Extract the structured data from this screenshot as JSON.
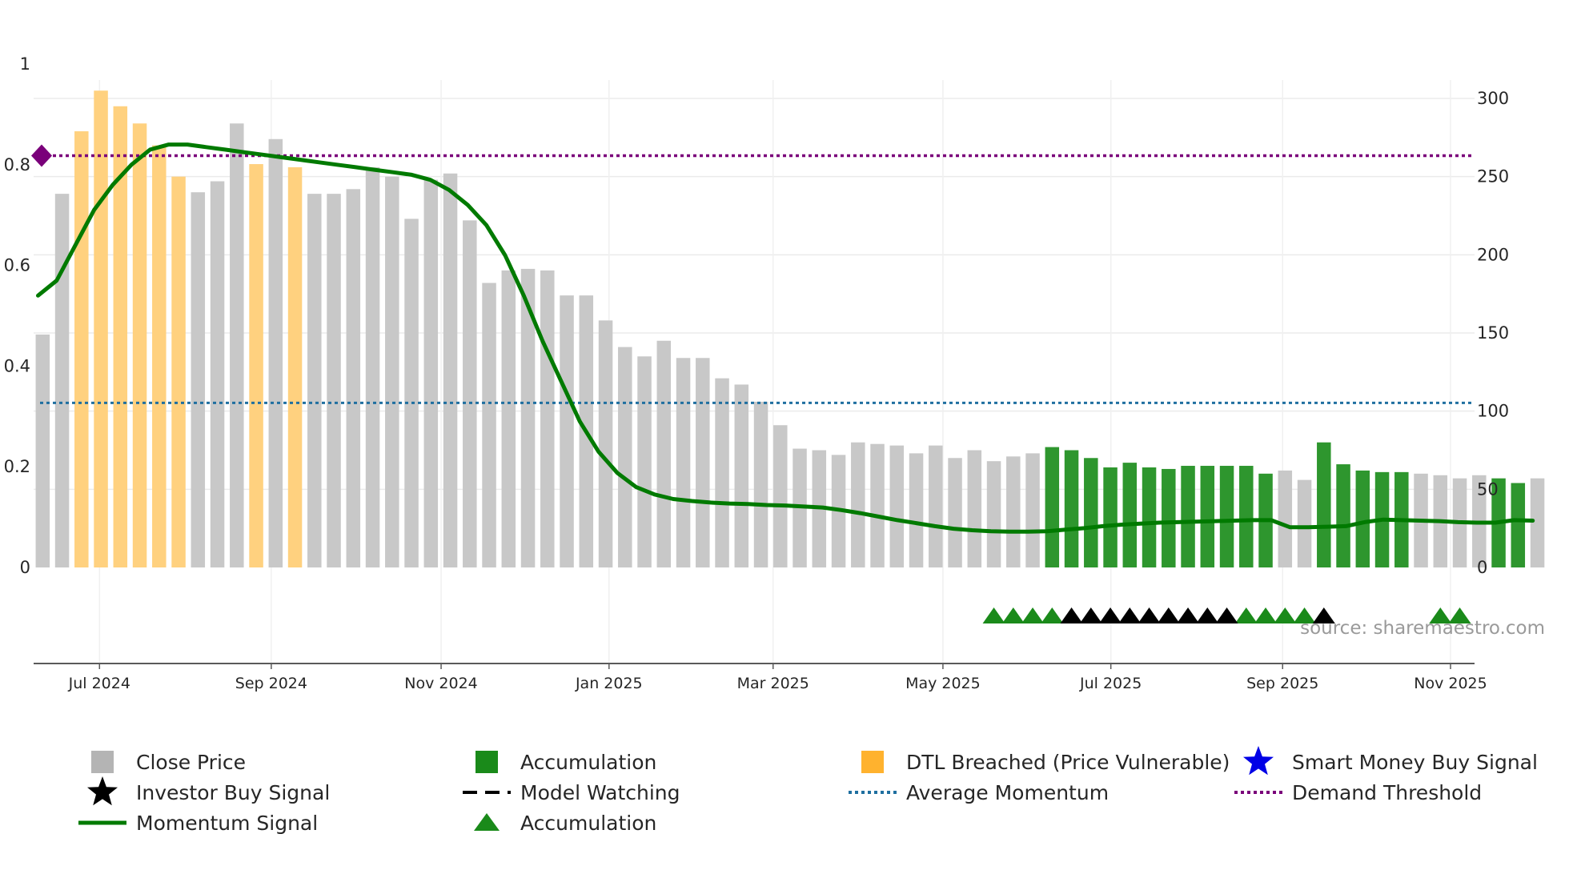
{
  "chart_data": {
    "type": "bar",
    "title": "",
    "source": "source: sharemaestro.com",
    "colors": {
      "close": "#c8c8c8",
      "accumulation": "#2e962e",
      "dtl": "#ffd17f",
      "momentum": "#007a00",
      "average": "#1f6fa0",
      "demand": "#7a007a",
      "marker_green": "#1a8a1a",
      "marker_black": "#000000"
    },
    "left_axis": {
      "ylim": [
        0,
        1
      ],
      "ticks": [
        "0",
        "0.2",
        "0.4",
        "0.6",
        "0.8",
        "1"
      ]
    },
    "right_axis": {
      "ylim": [
        0,
        320
      ],
      "ticks": [
        "0",
        "50",
        "100",
        "150",
        "200",
        "250",
        "300"
      ]
    },
    "x_axis": {
      "start_week": -3.2,
      "end_week": 72.3,
      "ticks": [
        {
          "label": "Jul 2024",
          "week": 0.2
        },
        {
          "label": "Sep 2024",
          "week": 9.1
        },
        {
          "label": "Nov 2024",
          "week": 17.9
        },
        {
          "label": "Jan 2025",
          "week": 26.6
        },
        {
          "label": "Mar 2025",
          "week": 35.1
        },
        {
          "label": "May 2025",
          "week": 43.9
        },
        {
          "label": "Jul 2025",
          "week": 52.6
        },
        {
          "label": "Sep 2025",
          "week": 61.5
        },
        {
          "label": "Nov 2025",
          "week": 70.2
        }
      ]
    },
    "bars": {
      "category": [
        "c",
        "c",
        "d",
        "d",
        "d",
        "d",
        "d",
        "d",
        "c",
        "c",
        "c",
        "d",
        "c",
        "d",
        "c",
        "c",
        "c",
        "c",
        "c",
        "c",
        "c",
        "c",
        "c",
        "c",
        "c",
        "c",
        "c",
        "c",
        "c",
        "c",
        "c",
        "c",
        "c",
        "c",
        "c",
        "c",
        "c",
        "c",
        "c",
        "c",
        "c",
        "c",
        "c",
        "c",
        "c",
        "c",
        "c",
        "c",
        "c",
        "c",
        "c",
        "c",
        "a",
        "a",
        "a",
        "a",
        "a",
        "a",
        "a",
        "a",
        "a",
        "a",
        "a",
        "a",
        "c",
        "c",
        "a",
        "a",
        "a",
        "a",
        "a",
        "c",
        "c",
        "c",
        "c",
        "a",
        "a",
        "c"
      ],
      "values": [
        149,
        239,
        279,
        305,
        295,
        284,
        270,
        250,
        240,
        247,
        284,
        258,
        274,
        256,
        239,
        239,
        242,
        256,
        250,
        223,
        248,
        252,
        222,
        182,
        190,
        191,
        190,
        174,
        174,
        158,
        141,
        135,
        145,
        134,
        134,
        121,
        117,
        106,
        91,
        76,
        75,
        72,
        80,
        79,
        78,
        73,
        78,
        70,
        75,
        68,
        71,
        73,
        77,
        75,
        70,
        64,
        67,
        64,
        63,
        65,
        65,
        65,
        65,
        60,
        62,
        56,
        80,
        66,
        62,
        61,
        61,
        60,
        59,
        57,
        59,
        57,
        54,
        57
      ]
    },
    "series": [
      {
        "name": "Momentum Signal",
        "axis": "left",
        "points": [
          [
            0,
            0.54
          ],
          [
            1,
            0.57
          ],
          [
            2,
            0.64
          ],
          [
            3,
            0.71
          ],
          [
            4,
            0.76
          ],
          [
            5,
            0.8
          ],
          [
            6,
            0.83
          ],
          [
            7,
            0.84
          ],
          [
            8,
            0.84
          ],
          [
            9,
            0.835
          ],
          [
            10,
            0.83
          ],
          [
            11,
            0.825
          ],
          [
            12,
            0.82
          ],
          [
            13,
            0.815
          ],
          [
            14,
            0.81
          ],
          [
            15,
            0.805
          ],
          [
            16,
            0.8
          ],
          [
            17,
            0.795
          ],
          [
            18,
            0.79
          ],
          [
            19,
            0.785
          ],
          [
            20,
            0.78
          ],
          [
            21,
            0.77
          ],
          [
            22,
            0.75
          ],
          [
            23,
            0.72
          ],
          [
            24,
            0.68
          ],
          [
            25,
            0.62
          ],
          [
            26,
            0.54
          ],
          [
            27,
            0.45
          ],
          [
            28,
            0.37
          ],
          [
            29,
            0.29
          ],
          [
            30,
            0.23
          ],
          [
            31,
            0.188
          ],
          [
            32,
            0.16
          ],
          [
            33,
            0.145
          ],
          [
            34,
            0.136
          ],
          [
            35,
            0.132
          ],
          [
            36,
            0.129
          ],
          [
            37,
            0.127
          ],
          [
            38,
            0.126
          ],
          [
            39,
            0.124
          ],
          [
            40,
            0.123
          ],
          [
            41,
            0.121
          ],
          [
            42,
            0.119
          ],
          [
            43,
            0.114
          ],
          [
            44,
            0.108
          ],
          [
            45,
            0.101
          ],
          [
            46,
            0.094
          ],
          [
            47,
            0.088
          ],
          [
            48,
            0.082
          ],
          [
            49,
            0.077
          ],
          [
            50,
            0.074
          ],
          [
            51,
            0.072
          ],
          [
            52,
            0.071
          ],
          [
            53,
            0.071
          ],
          [
            54,
            0.072
          ],
          [
            55,
            0.075
          ],
          [
            56,
            0.078
          ],
          [
            57,
            0.082
          ],
          [
            58,
            0.085
          ],
          [
            59,
            0.087
          ],
          [
            60,
            0.089
          ],
          [
            61,
            0.09
          ],
          [
            62,
            0.091
          ],
          [
            63,
            0.092
          ],
          [
            64,
            0.093
          ],
          [
            65,
            0.094
          ],
          [
            66,
            0.094
          ],
          [
            67,
            0.08
          ],
          [
            68,
            0.08
          ],
          [
            69,
            0.081
          ],
          [
            70,
            0.082
          ],
          [
            71,
            0.09
          ],
          [
            72,
            0.095
          ],
          [
            73,
            0.094
          ],
          [
            74,
            0.093
          ],
          [
            75,
            0.092
          ],
          [
            76,
            0.09
          ],
          [
            77,
            0.089
          ],
          [
            78,
            0.089
          ],
          [
            79,
            0.094
          ],
          [
            80,
            0.093
          ]
        ]
      },
      {
        "name": "Average Momentum",
        "axis": "left",
        "value": 0.327
      },
      {
        "name": "Demand Threshold",
        "axis": "left",
        "value": 0.818
      }
    ],
    "demand_marker": {
      "index": 0,
      "value": 0.818
    },
    "markers": {
      "accumulation_green": [
        49,
        50,
        51,
        52,
        62,
        63,
        64,
        65,
        72,
        73
      ],
      "model_watching_black": [
        53,
        54,
        55,
        56,
        57,
        58,
        59,
        60,
        61,
        66
      ]
    },
    "legend": [
      {
        "label": "Close Price",
        "symbol": "square",
        "color": "#b4b4b4"
      },
      {
        "label": "Accumulation",
        "symbol": "square",
        "color": "#1a8a1a"
      },
      {
        "label": "DTL Breached (Price Vulnerable)",
        "symbol": "square",
        "color": "#ffb22e"
      },
      {
        "label": "Smart Money Buy Signal",
        "symbol": "star",
        "color": "#0000e6"
      },
      {
        "label": "Investor Buy Signal",
        "symbol": "star",
        "color": "#000000"
      },
      {
        "label": "Model Watching",
        "symbol": "dash",
        "color": "#000000"
      },
      {
        "label": "Average Momentum",
        "symbol": "dotted",
        "color": "#1f6fa0"
      },
      {
        "label": "Demand Threshold",
        "symbol": "dotted",
        "color": "#7a007a"
      },
      {
        "label": "Momentum Signal",
        "symbol": "line",
        "color": "#007a00"
      },
      {
        "label": "Accumulation",
        "symbol": "triangle",
        "color": "#1a8a1a"
      }
    ]
  }
}
